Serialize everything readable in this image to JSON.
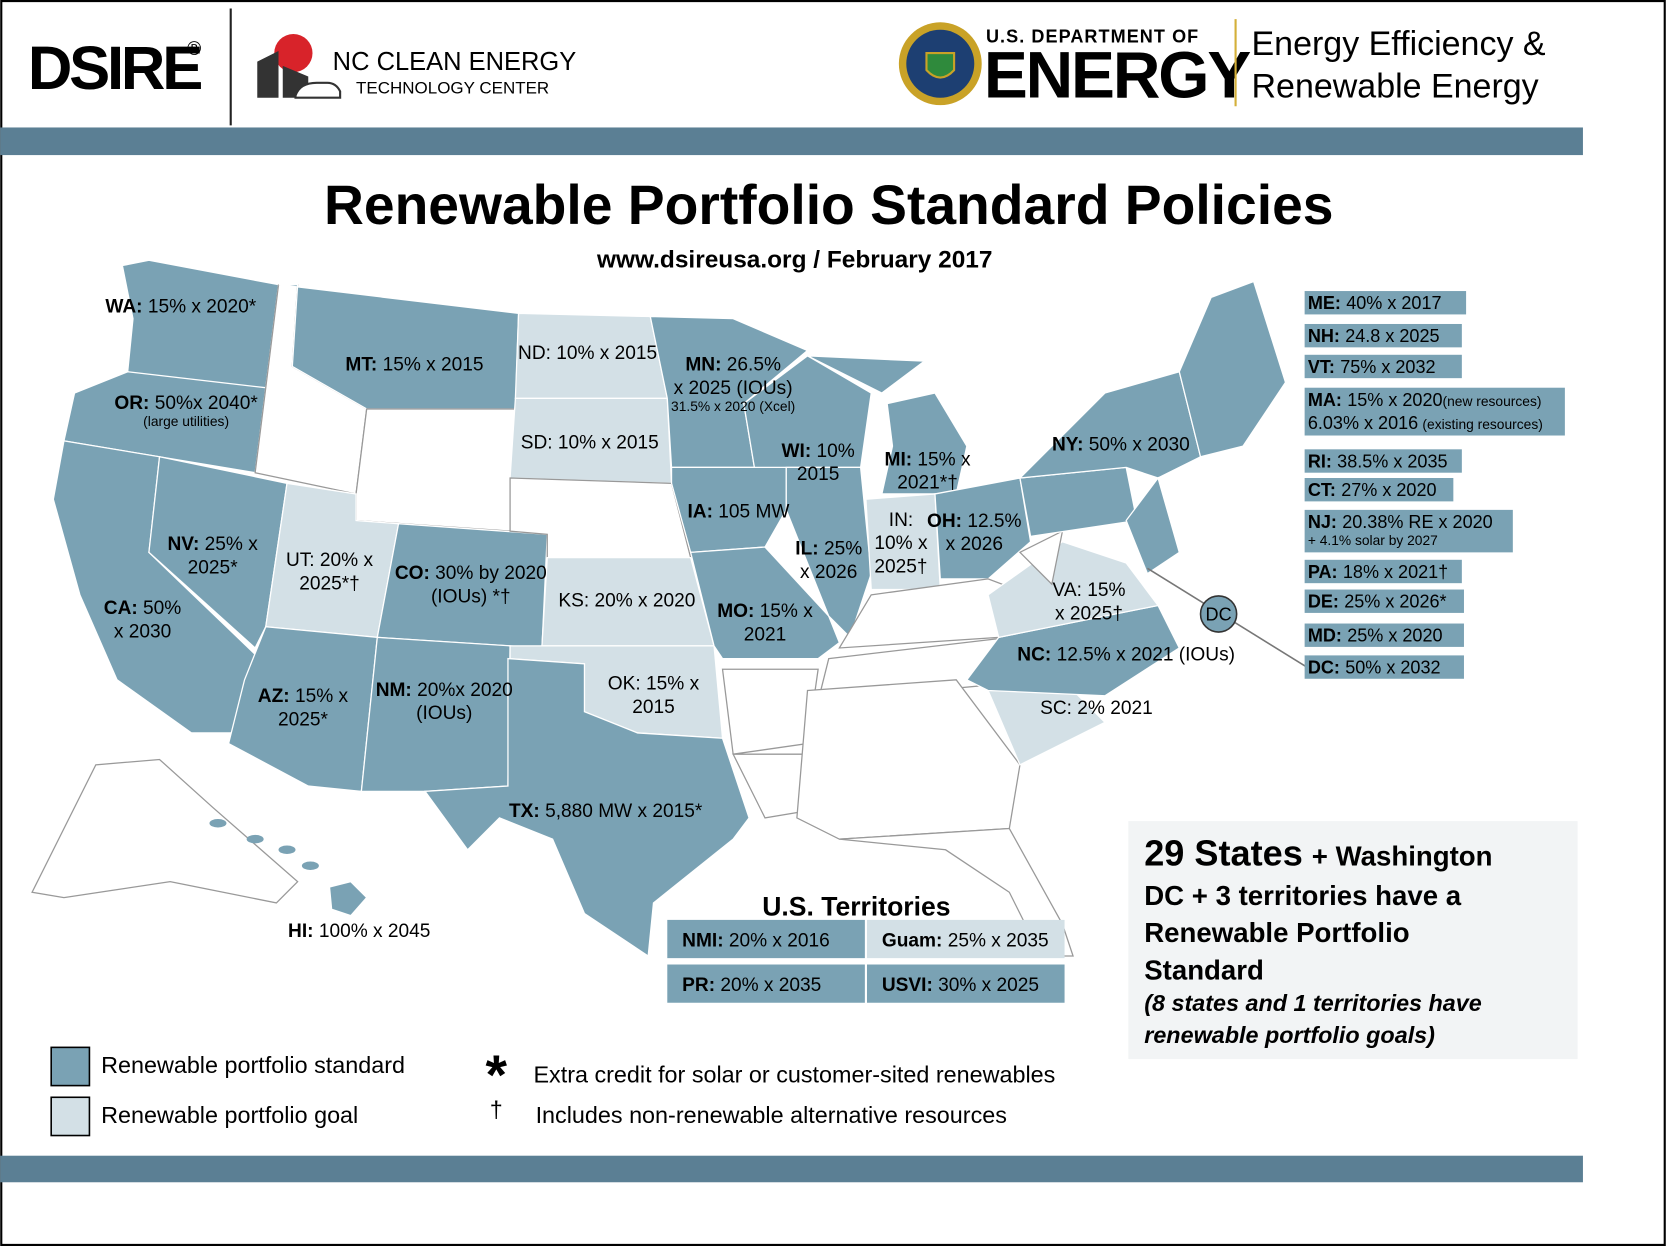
{
  "header": {
    "dsire": "DSIRE",
    "registered": "®",
    "nc_line1": "NC CLEAN ENERGY",
    "nc_line2": "TECHNOLOGY CENTER",
    "doe_line1": "U.S. DEPARTMENT OF",
    "doe_line2": "ENERGY",
    "eere_line1": "Energy Efficiency &",
    "eere_line2": "Renewable Energy"
  },
  "title": "Renewable Portfolio Standard Policies",
  "subtitle": "www.dsireusa.org / February 2017",
  "states": [
    {
      "abbr": "WA:",
      "lines": [
        "15% x 2020*"
      ]
    },
    {
      "abbr": "MT:",
      "lines": [
        "15% x 2015"
      ]
    },
    {
      "lines": [
        "ND: 10% x 2015"
      ]
    },
    {
      "abbr": "MN:",
      "lines": [
        "26.5%",
        "x 2025 (IOUs)"
      ],
      "note": "31.5% x 2020 (Xcel)"
    },
    {
      "abbr": "OR:",
      "lines": [
        "50%x 2040*"
      ],
      "note": "(large utilities)"
    },
    {
      "lines": [
        "SD: 10% x 2015"
      ]
    },
    {
      "abbr": "WI:",
      "lines": [
        "10%",
        "2015"
      ]
    },
    {
      "abbr": "MI:",
      "lines": [
        "15% x",
        "2021*†"
      ]
    },
    {
      "abbr": "NY:",
      "lines": [
        "50% x 2030"
      ]
    },
    {
      "abbr": "IA:",
      "lines": [
        "105 MW"
      ]
    },
    {
      "abbr": "OH:",
      "lines": [
        "12.5%",
        "x 2026"
      ]
    },
    {
      "lines": [
        "IN:",
        "10% x",
        "2025†"
      ]
    },
    {
      "abbr": "NV:",
      "lines": [
        "25% x",
        "2025*"
      ]
    },
    {
      "lines": [
        "UT: 20% x",
        "2025*†"
      ]
    },
    {
      "abbr": "CO:",
      "lines": [
        "30% by 2020",
        "(IOUs) *†"
      ]
    },
    {
      "abbr": "IL:",
      "lines": [
        "25%",
        "x 2026"
      ]
    },
    {
      "lines": [
        "VA: 15%",
        "x 2025†"
      ]
    },
    {
      "lines": [
        "KS: 20% x 2020"
      ]
    },
    {
      "abbr": "CA:",
      "lines": [
        "50%",
        "x 2030"
      ]
    },
    {
      "abbr": "MO:",
      "lines": [
        "15% x",
        "2021"
      ]
    },
    {
      "abbr": "NC:",
      "lines": [
        "12.5% x 2021 (IOUs)"
      ]
    },
    {
      "abbr": "AZ:",
      "lines": [
        "15% x",
        "2025*"
      ]
    },
    {
      "abbr": "NM:",
      "lines": [
        "20%x 2020",
        "(IOUs)"
      ]
    },
    {
      "lines": [
        "OK: 15% x",
        "2015"
      ]
    },
    {
      "lines": [
        "SC: 2% 2021"
      ]
    },
    {
      "abbr": "TX:",
      "lines": [
        "5,880 MW x 2015*"
      ]
    },
    {
      "abbr": "HI:",
      "lines": [
        "100% x 2045"
      ]
    }
  ],
  "dc_marker": "DC",
  "side_list": [
    {
      "abbr": "ME:",
      "lines": [
        "40% x 2017"
      ]
    },
    {
      "abbr": "NH:",
      "lines": [
        "24.8 x 2025"
      ]
    },
    {
      "abbr": "VT:",
      "lines": [
        "75% x 2032"
      ]
    },
    {
      "abbr": "MA:",
      "lines": [
        {
          "text": "15% x 2020",
          "note": "(new resources)"
        },
        {
          "text": "6.03% x 2016",
          "note": "(existing resources)"
        }
      ]
    },
    {
      "abbr": "RI:",
      "lines": [
        "38.5% x 2035"
      ]
    },
    {
      "abbr": "CT:",
      "lines": [
        "27% x 2020"
      ]
    },
    {
      "abbr": "NJ:",
      "lines": [
        "20.38% RE x 2020"
      ],
      "note": "+ 4.1% solar by 2027"
    },
    {
      "abbr": "PA:",
      "lines": [
        "18% x 2021†"
      ]
    },
    {
      "abbr": "DE:",
      "lines": [
        "25% x 2026*"
      ]
    },
    {
      "abbr": "MD:",
      "lines": [
        "25% x 2020"
      ]
    },
    {
      "abbr": "DC:",
      "lines": [
        "50% x 2032"
      ]
    }
  ],
  "territories": {
    "title": "U.S. Territories",
    "cells": [
      {
        "abbr": "NMI:",
        "lines": [
          "20% x 2016"
        ]
      },
      {
        "abbr": "Guam:",
        "lines": [
          "25% x 2035"
        ]
      },
      {
        "abbr": "PR:",
        "lines": [
          "20% x 2035"
        ]
      },
      {
        "abbr": "USVI:",
        "lines": [
          "30% x 2025"
        ]
      }
    ]
  },
  "summary": {
    "lead": "29 States",
    "lead_rest": "+ Washington",
    "lines": [
      "DC + 3 territories have a",
      "Renewable Portfolio",
      "Standard"
    ],
    "goal_lines": [
      "(8 states and 1 territories have",
      "renewable portfolio goals)"
    ]
  },
  "legend": {
    "items": [
      {
        "label": "Renewable portfolio standard",
        "color": "#7aa2b4"
      },
      {
        "label": "Renewable portfolio goal",
        "color": "#d3e0e6"
      }
    ],
    "notes": [
      {
        "symbol": "*",
        "text": "Extra credit for solar or customer-sited renewables"
      },
      {
        "symbol": "†",
        "text": "Includes non-renewable alternative resources"
      }
    ]
  }
}
